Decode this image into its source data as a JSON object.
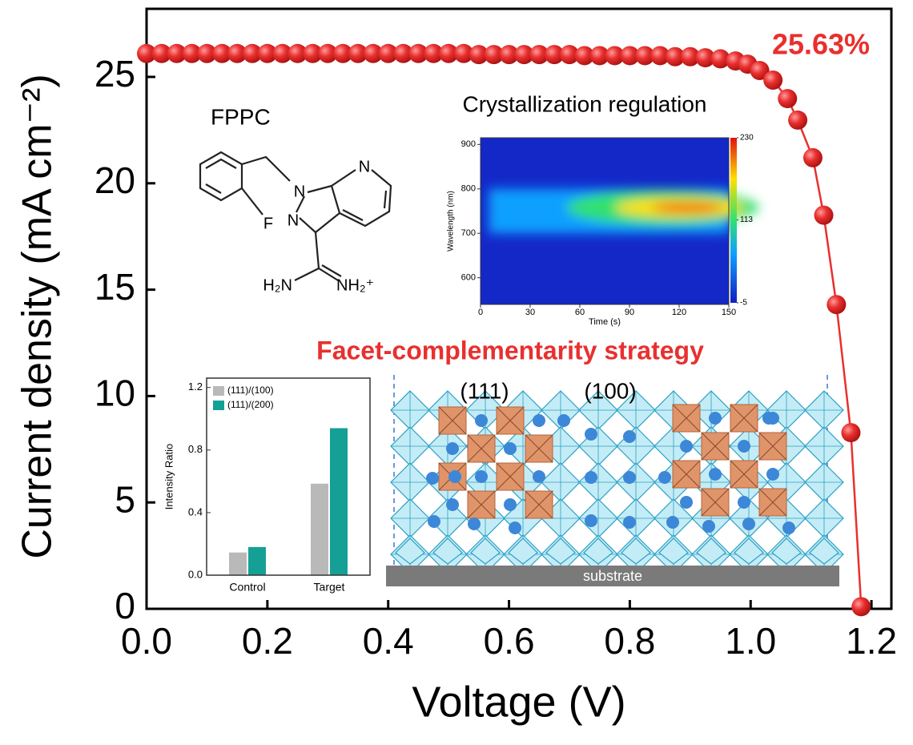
{
  "chart_data": [
    {
      "type": "line",
      "xlabel": "Voltage (V)",
      "ylabel": "Current density (mA cm⁻²)",
      "annotation": "25.63%",
      "xlim": [
        0,
        1.233
      ],
      "ylim": [
        0,
        28.2
      ],
      "xticks": [
        {
          "value": 0,
          "label": "0.0"
        },
        0.2,
        0.4,
        0.6,
        0.8,
        {
          "value": 1,
          "label": "1.0"
        },
        1.2
      ],
      "yticks": [
        0,
        5,
        10,
        15,
        20,
        25
      ],
      "x": [
        0,
        0.025,
        0.05,
        0.075,
        0.1,
        0.125,
        0.15,
        0.175,
        0.2,
        0.225,
        0.25,
        0.275,
        0.3,
        0.325,
        0.35,
        0.375,
        0.4,
        0.425,
        0.45,
        0.475,
        0.5,
        0.525,
        0.55,
        0.575,
        0.6,
        0.625,
        0.65,
        0.675,
        0.7,
        0.725,
        0.75,
        0.775,
        0.8,
        0.825,
        0.85,
        0.875,
        0.9,
        0.925,
        0.95,
        0.975,
        0.995,
        1.015,
        1.037,
        1.061,
        1.078,
        1.103,
        1.121,
        1.142,
        1.166,
        1.183
      ],
      "series": [
        {
          "color": "#e8302f",
          "values": [
            26.1,
            26.1,
            26.1,
            26.1,
            26.1,
            26.1,
            26.1,
            26.1,
            26.1,
            26.1,
            26.1,
            26.1,
            26.1,
            26.1,
            26.1,
            26.1,
            26.1,
            26.1,
            26.1,
            26.1,
            26.1,
            26.1,
            26.05,
            26.05,
            26.05,
            26.05,
            26.05,
            26.05,
            26.05,
            26.0,
            26.0,
            26.0,
            26.0,
            26.0,
            26.0,
            25.95,
            25.95,
            25.9,
            25.85,
            25.75,
            25.6,
            25.3,
            24.85,
            23.98,
            22.97,
            21.2,
            18.5,
            14.3,
            8.28,
            0.1
          ]
        }
      ]
    },
    {
      "type": "heatmap",
      "title": "Crystallization regulation",
      "xlabel": "Time (s)",
      "ylabel": "Wavelength (nm)",
      "xlim": [
        0,
        150
      ],
      "ylim": [
        540,
        915
      ],
      "xticks": [
        0,
        30,
        60,
        90,
        120,
        150
      ],
      "yticks": [
        600,
        700,
        800,
        900
      ],
      "colorbar": {
        "lim": [
          -5,
          230
        ],
        "ticks": [
          230,
          113,
          -5
        ]
      }
    },
    {
      "type": "bar",
      "ylabel": "Intensity Ratio",
      "categories": [
        "Control",
        "Target"
      ],
      "series": [
        {
          "name": "(111)/(100)",
          "color": "#b9b9b9",
          "values": [
            0.145,
            0.585
          ]
        },
        {
          "name": "(111)/(200)",
          "color": "#15a095",
          "values": [
            0.18,
            0.94
          ]
        }
      ],
      "ylim": [
        0,
        1.26
      ],
      "yticks": [
        {
          "value": 0,
          "label": "0.0"
        },
        0.4,
        0.8,
        1.2
      ],
      "legend": "upper left"
    }
  ],
  "molecule": {
    "name": "FPPC",
    "atoms": [
      "N",
      "N",
      "N",
      "F",
      "H₂N",
      "NH₂⁺"
    ]
  },
  "diagram": {
    "title": "Facet-complementarity strategy",
    "facets": [
      "(111)",
      "(100)"
    ],
    "substrate": "substrate"
  }
}
